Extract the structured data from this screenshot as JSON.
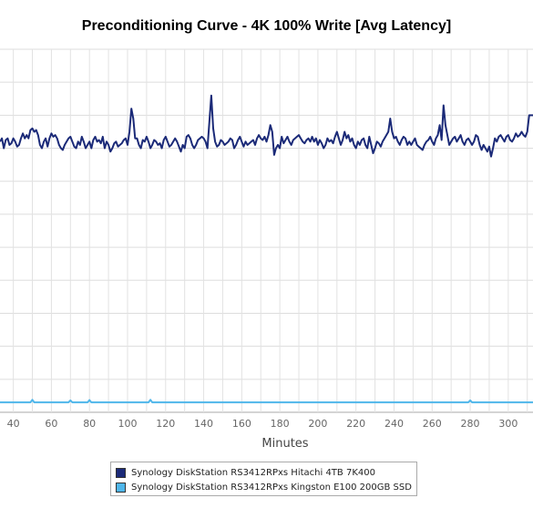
{
  "chart_data": {
    "type": "line",
    "title": "Preconditioning Curve - 4K 100% Write [Avg Latency]",
    "xlabel": "Minutes",
    "ylabel": "",
    "xlim": [
      33,
      313
    ],
    "x_ticks": [
      40,
      60,
      80,
      100,
      120,
      140,
      160,
      180,
      200,
      220,
      240,
      260,
      280,
      300
    ],
    "ylim": [
      0,
      11
    ],
    "grid": true,
    "legend": "bottom",
    "series": [
      {
        "name": "Synology DiskStation RS3412RPxs Hitachi 4TB 7K400",
        "color": "#1b2a78",
        "points": [
          [
            33,
            8.2
          ],
          [
            34,
            8.3
          ],
          [
            35,
            8.0
          ],
          [
            36,
            8.25
          ],
          [
            37,
            8.3
          ],
          [
            38,
            8.1
          ],
          [
            39,
            8.15
          ],
          [
            40,
            8.3
          ],
          [
            41,
            8.2
          ],
          [
            42,
            8.05
          ],
          [
            43,
            8.1
          ],
          [
            44,
            8.3
          ],
          [
            45,
            8.45
          ],
          [
            46,
            8.3
          ],
          [
            47,
            8.4
          ],
          [
            48,
            8.3
          ],
          [
            49,
            8.55
          ],
          [
            50,
            8.6
          ],
          [
            51,
            8.5
          ],
          [
            52,
            8.55
          ],
          [
            53,
            8.4
          ],
          [
            54,
            8.1
          ],
          [
            55,
            8.0
          ],
          [
            56,
            8.2
          ],
          [
            57,
            8.3
          ],
          [
            58,
            8.05
          ],
          [
            59,
            8.3
          ],
          [
            60,
            8.45
          ],
          [
            61,
            8.35
          ],
          [
            62,
            8.4
          ],
          [
            63,
            8.3
          ],
          [
            64,
            8.1
          ],
          [
            65,
            8.0
          ],
          [
            66,
            7.95
          ],
          [
            67,
            8.1
          ],
          [
            68,
            8.2
          ],
          [
            69,
            8.3
          ],
          [
            70,
            8.35
          ],
          [
            71,
            8.2
          ],
          [
            72,
            8.05
          ],
          [
            73,
            8.0
          ],
          [
            74,
            8.2
          ],
          [
            75,
            8.1
          ],
          [
            76,
            8.35
          ],
          [
            77,
            8.2
          ],
          [
            78,
            8.0
          ],
          [
            79,
            8.1
          ],
          [
            80,
            8.2
          ],
          [
            81,
            8.0
          ],
          [
            82,
            8.25
          ],
          [
            83,
            8.35
          ],
          [
            84,
            8.2
          ],
          [
            85,
            8.25
          ],
          [
            86,
            8.15
          ],
          [
            87,
            8.35
          ],
          [
            88,
            8.0
          ],
          [
            89,
            8.2
          ],
          [
            90,
            8.1
          ],
          [
            91,
            7.9
          ],
          [
            92,
            8.0
          ],
          [
            93,
            8.15
          ],
          [
            94,
            8.2
          ],
          [
            95,
            8.05
          ],
          [
            96,
            8.1
          ],
          [
            97,
            8.15
          ],
          [
            98,
            8.25
          ],
          [
            99,
            8.3
          ],
          [
            100,
            8.1
          ],
          [
            101,
            8.5
          ],
          [
            102,
            9.2
          ],
          [
            103,
            8.9
          ],
          [
            104,
            8.3
          ],
          [
            105,
            8.3
          ],
          [
            106,
            8.1
          ],
          [
            107,
            8.0
          ],
          [
            108,
            8.25
          ],
          [
            109,
            8.2
          ],
          [
            110,
            8.35
          ],
          [
            111,
            8.2
          ],
          [
            112,
            8.0
          ],
          [
            113,
            8.1
          ],
          [
            114,
            8.25
          ],
          [
            115,
            8.2
          ],
          [
            116,
            8.1
          ],
          [
            117,
            8.15
          ],
          [
            118,
            8.0
          ],
          [
            119,
            8.25
          ],
          [
            120,
            8.35
          ],
          [
            121,
            8.2
          ],
          [
            122,
            8.05
          ],
          [
            123,
            8.1
          ],
          [
            124,
            8.2
          ],
          [
            125,
            8.3
          ],
          [
            126,
            8.2
          ],
          [
            127,
            8.05
          ],
          [
            128,
            7.9
          ],
          [
            129,
            8.1
          ],
          [
            130,
            8.0
          ],
          [
            131,
            8.35
          ],
          [
            132,
            8.4
          ],
          [
            133,
            8.3
          ],
          [
            134,
            8.1
          ],
          [
            135,
            8.0
          ],
          [
            136,
            8.1
          ],
          [
            137,
            8.25
          ],
          [
            138,
            8.3
          ],
          [
            139,
            8.35
          ],
          [
            140,
            8.3
          ],
          [
            141,
            8.2
          ],
          [
            142,
            8.0
          ],
          [
            143,
            8.8
          ],
          [
            144,
            9.6
          ],
          [
            145,
            8.6
          ],
          [
            146,
            8.2
          ],
          [
            147,
            8.05
          ],
          [
            148,
            8.1
          ],
          [
            149,
            8.25
          ],
          [
            150,
            8.2
          ],
          [
            151,
            8.1
          ],
          [
            152,
            8.15
          ],
          [
            153,
            8.2
          ],
          [
            154,
            8.3
          ],
          [
            155,
            8.25
          ],
          [
            156,
            8.0
          ],
          [
            157,
            8.1
          ],
          [
            158,
            8.25
          ],
          [
            159,
            8.35
          ],
          [
            160,
            8.2
          ],
          [
            161,
            8.05
          ],
          [
            162,
            8.2
          ],
          [
            163,
            8.1
          ],
          [
            164,
            8.15
          ],
          [
            165,
            8.2
          ],
          [
            166,
            8.25
          ],
          [
            167,
            8.1
          ],
          [
            168,
            8.3
          ],
          [
            169,
            8.4
          ],
          [
            170,
            8.3
          ],
          [
            171,
            8.25
          ],
          [
            172,
            8.35
          ],
          [
            173,
            8.2
          ],
          [
            174,
            8.4
          ],
          [
            175,
            8.7
          ],
          [
            176,
            8.5
          ],
          [
            177,
            7.8
          ],
          [
            178,
            8.0
          ],
          [
            179,
            8.1
          ],
          [
            180,
            8.0
          ],
          [
            181,
            8.35
          ],
          [
            182,
            8.15
          ],
          [
            183,
            8.25
          ],
          [
            184,
            8.35
          ],
          [
            185,
            8.2
          ],
          [
            186,
            8.1
          ],
          [
            187,
            8.25
          ],
          [
            188,
            8.3
          ],
          [
            189,
            8.35
          ],
          [
            190,
            8.4
          ],
          [
            191,
            8.3
          ],
          [
            192,
            8.2
          ],
          [
            193,
            8.15
          ],
          [
            194,
            8.25
          ],
          [
            195,
            8.3
          ],
          [
            196,
            8.2
          ],
          [
            197,
            8.35
          ],
          [
            198,
            8.2
          ],
          [
            199,
            8.3
          ],
          [
            200,
            8.1
          ],
          [
            201,
            8.25
          ],
          [
            202,
            8.15
          ],
          [
            203,
            8.0
          ],
          [
            204,
            8.1
          ],
          [
            205,
            8.3
          ],
          [
            206,
            8.2
          ],
          [
            207,
            8.25
          ],
          [
            208,
            8.15
          ],
          [
            209,
            8.35
          ],
          [
            210,
            8.5
          ],
          [
            211,
            8.3
          ],
          [
            212,
            8.1
          ],
          [
            213,
            8.25
          ],
          [
            214,
            8.5
          ],
          [
            215,
            8.3
          ],
          [
            216,
            8.4
          ],
          [
            217,
            8.2
          ],
          [
            218,
            8.3
          ],
          [
            219,
            8.1
          ],
          [
            220,
            8.0
          ],
          [
            221,
            8.2
          ],
          [
            222,
            8.1
          ],
          [
            223,
            8.25
          ],
          [
            224,
            8.3
          ],
          [
            225,
            8.1
          ],
          [
            226,
            8.0
          ],
          [
            227,
            8.35
          ],
          [
            228,
            8.1
          ],
          [
            229,
            7.85
          ],
          [
            230,
            8.0
          ],
          [
            231,
            8.2
          ],
          [
            232,
            8.15
          ],
          [
            233,
            8.05
          ],
          [
            234,
            8.2
          ],
          [
            235,
            8.3
          ],
          [
            236,
            8.4
          ],
          [
            237,
            8.5
          ],
          [
            238,
            8.9
          ],
          [
            239,
            8.5
          ],
          [
            240,
            8.3
          ],
          [
            241,
            8.35
          ],
          [
            242,
            8.2
          ],
          [
            243,
            8.1
          ],
          [
            244,
            8.25
          ],
          [
            245,
            8.35
          ],
          [
            246,
            8.3
          ],
          [
            247,
            8.1
          ],
          [
            248,
            8.2
          ],
          [
            249,
            8.1
          ],
          [
            250,
            8.2
          ],
          [
            251,
            8.3
          ],
          [
            252,
            8.1
          ],
          [
            253,
            8.05
          ],
          [
            254,
            8.0
          ],
          [
            255,
            7.95
          ],
          [
            256,
            8.1
          ],
          [
            257,
            8.2
          ],
          [
            258,
            8.25
          ],
          [
            259,
            8.35
          ],
          [
            260,
            8.2
          ],
          [
            261,
            8.1
          ],
          [
            262,
            8.3
          ],
          [
            263,
            8.4
          ],
          [
            264,
            8.7
          ],
          [
            265,
            8.25
          ],
          [
            266,
            9.3
          ],
          [
            267,
            8.7
          ],
          [
            268,
            8.4
          ],
          [
            269,
            8.1
          ],
          [
            270,
            8.2
          ],
          [
            271,
            8.3
          ],
          [
            272,
            8.35
          ],
          [
            273,
            8.2
          ],
          [
            274,
            8.3
          ],
          [
            275,
            8.4
          ],
          [
            276,
            8.2
          ],
          [
            277,
            8.1
          ],
          [
            278,
            8.25
          ],
          [
            279,
            8.3
          ],
          [
            280,
            8.2
          ],
          [
            281,
            8.1
          ],
          [
            282,
            8.2
          ],
          [
            283,
            8.4
          ],
          [
            284,
            8.35
          ],
          [
            285,
            8.1
          ],
          [
            286,
            7.95
          ],
          [
            287,
            8.1
          ],
          [
            288,
            8.0
          ],
          [
            289,
            7.9
          ],
          [
            290,
            8.05
          ],
          [
            291,
            7.75
          ],
          [
            292,
            8.0
          ],
          [
            293,
            8.3
          ],
          [
            294,
            8.2
          ],
          [
            295,
            8.35
          ],
          [
            296,
            8.4
          ],
          [
            297,
            8.3
          ],
          [
            298,
            8.2
          ],
          [
            299,
            8.35
          ],
          [
            300,
            8.4
          ],
          [
            301,
            8.25
          ],
          [
            302,
            8.2
          ],
          [
            303,
            8.3
          ],
          [
            304,
            8.45
          ],
          [
            305,
            8.35
          ],
          [
            306,
            8.4
          ],
          [
            307,
            8.5
          ],
          [
            308,
            8.4
          ],
          [
            309,
            8.35
          ],
          [
            310,
            8.5
          ],
          [
            311,
            9.0
          ],
          [
            312,
            9.0
          ],
          [
            313,
            9.0
          ]
        ]
      },
      {
        "name": "Synology DiskStation RS3412RPxs Kingston E100 200GB SSD",
        "color": "#4fb6ea",
        "points": [
          [
            33,
            0.3
          ],
          [
            49,
            0.3
          ],
          [
            50,
            0.38
          ],
          [
            51,
            0.3
          ],
          [
            69,
            0.3
          ],
          [
            70,
            0.36
          ],
          [
            71,
            0.3
          ],
          [
            79,
            0.3
          ],
          [
            80,
            0.37
          ],
          [
            81,
            0.3
          ],
          [
            111,
            0.3
          ],
          [
            112,
            0.38
          ],
          [
            113,
            0.3
          ],
          [
            279,
            0.3
          ],
          [
            280,
            0.36
          ],
          [
            281,
            0.3
          ],
          [
            313,
            0.3
          ]
        ]
      }
    ]
  }
}
